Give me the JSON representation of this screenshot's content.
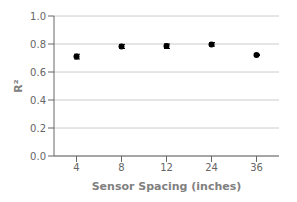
{
  "chart_data": {
    "type": "scatter",
    "x_label": "Sensor Spacing (inches)",
    "y_label": "R²",
    "categories": [
      "4",
      "8",
      "12",
      "24",
      "36"
    ],
    "values": [
      0.71,
      0.783,
      0.785,
      0.797,
      0.722
    ],
    "whisker_low": [
      0.693,
      0.768,
      0.768,
      0.785,
      0.718
    ],
    "whisker_high": [
      0.727,
      0.797,
      0.8,
      0.81,
      0.726
    ],
    "color": "#000000",
    "marker": "circle",
    "ylim": [
      0.0,
      1.0
    ],
    "yticks": [
      {
        "value": 0,
        "label": "0.0"
      },
      0.2,
      0.4,
      0.6,
      0.8,
      {
        "value": 1,
        "label": "1.0"
      }
    ],
    "grid": true
  }
}
